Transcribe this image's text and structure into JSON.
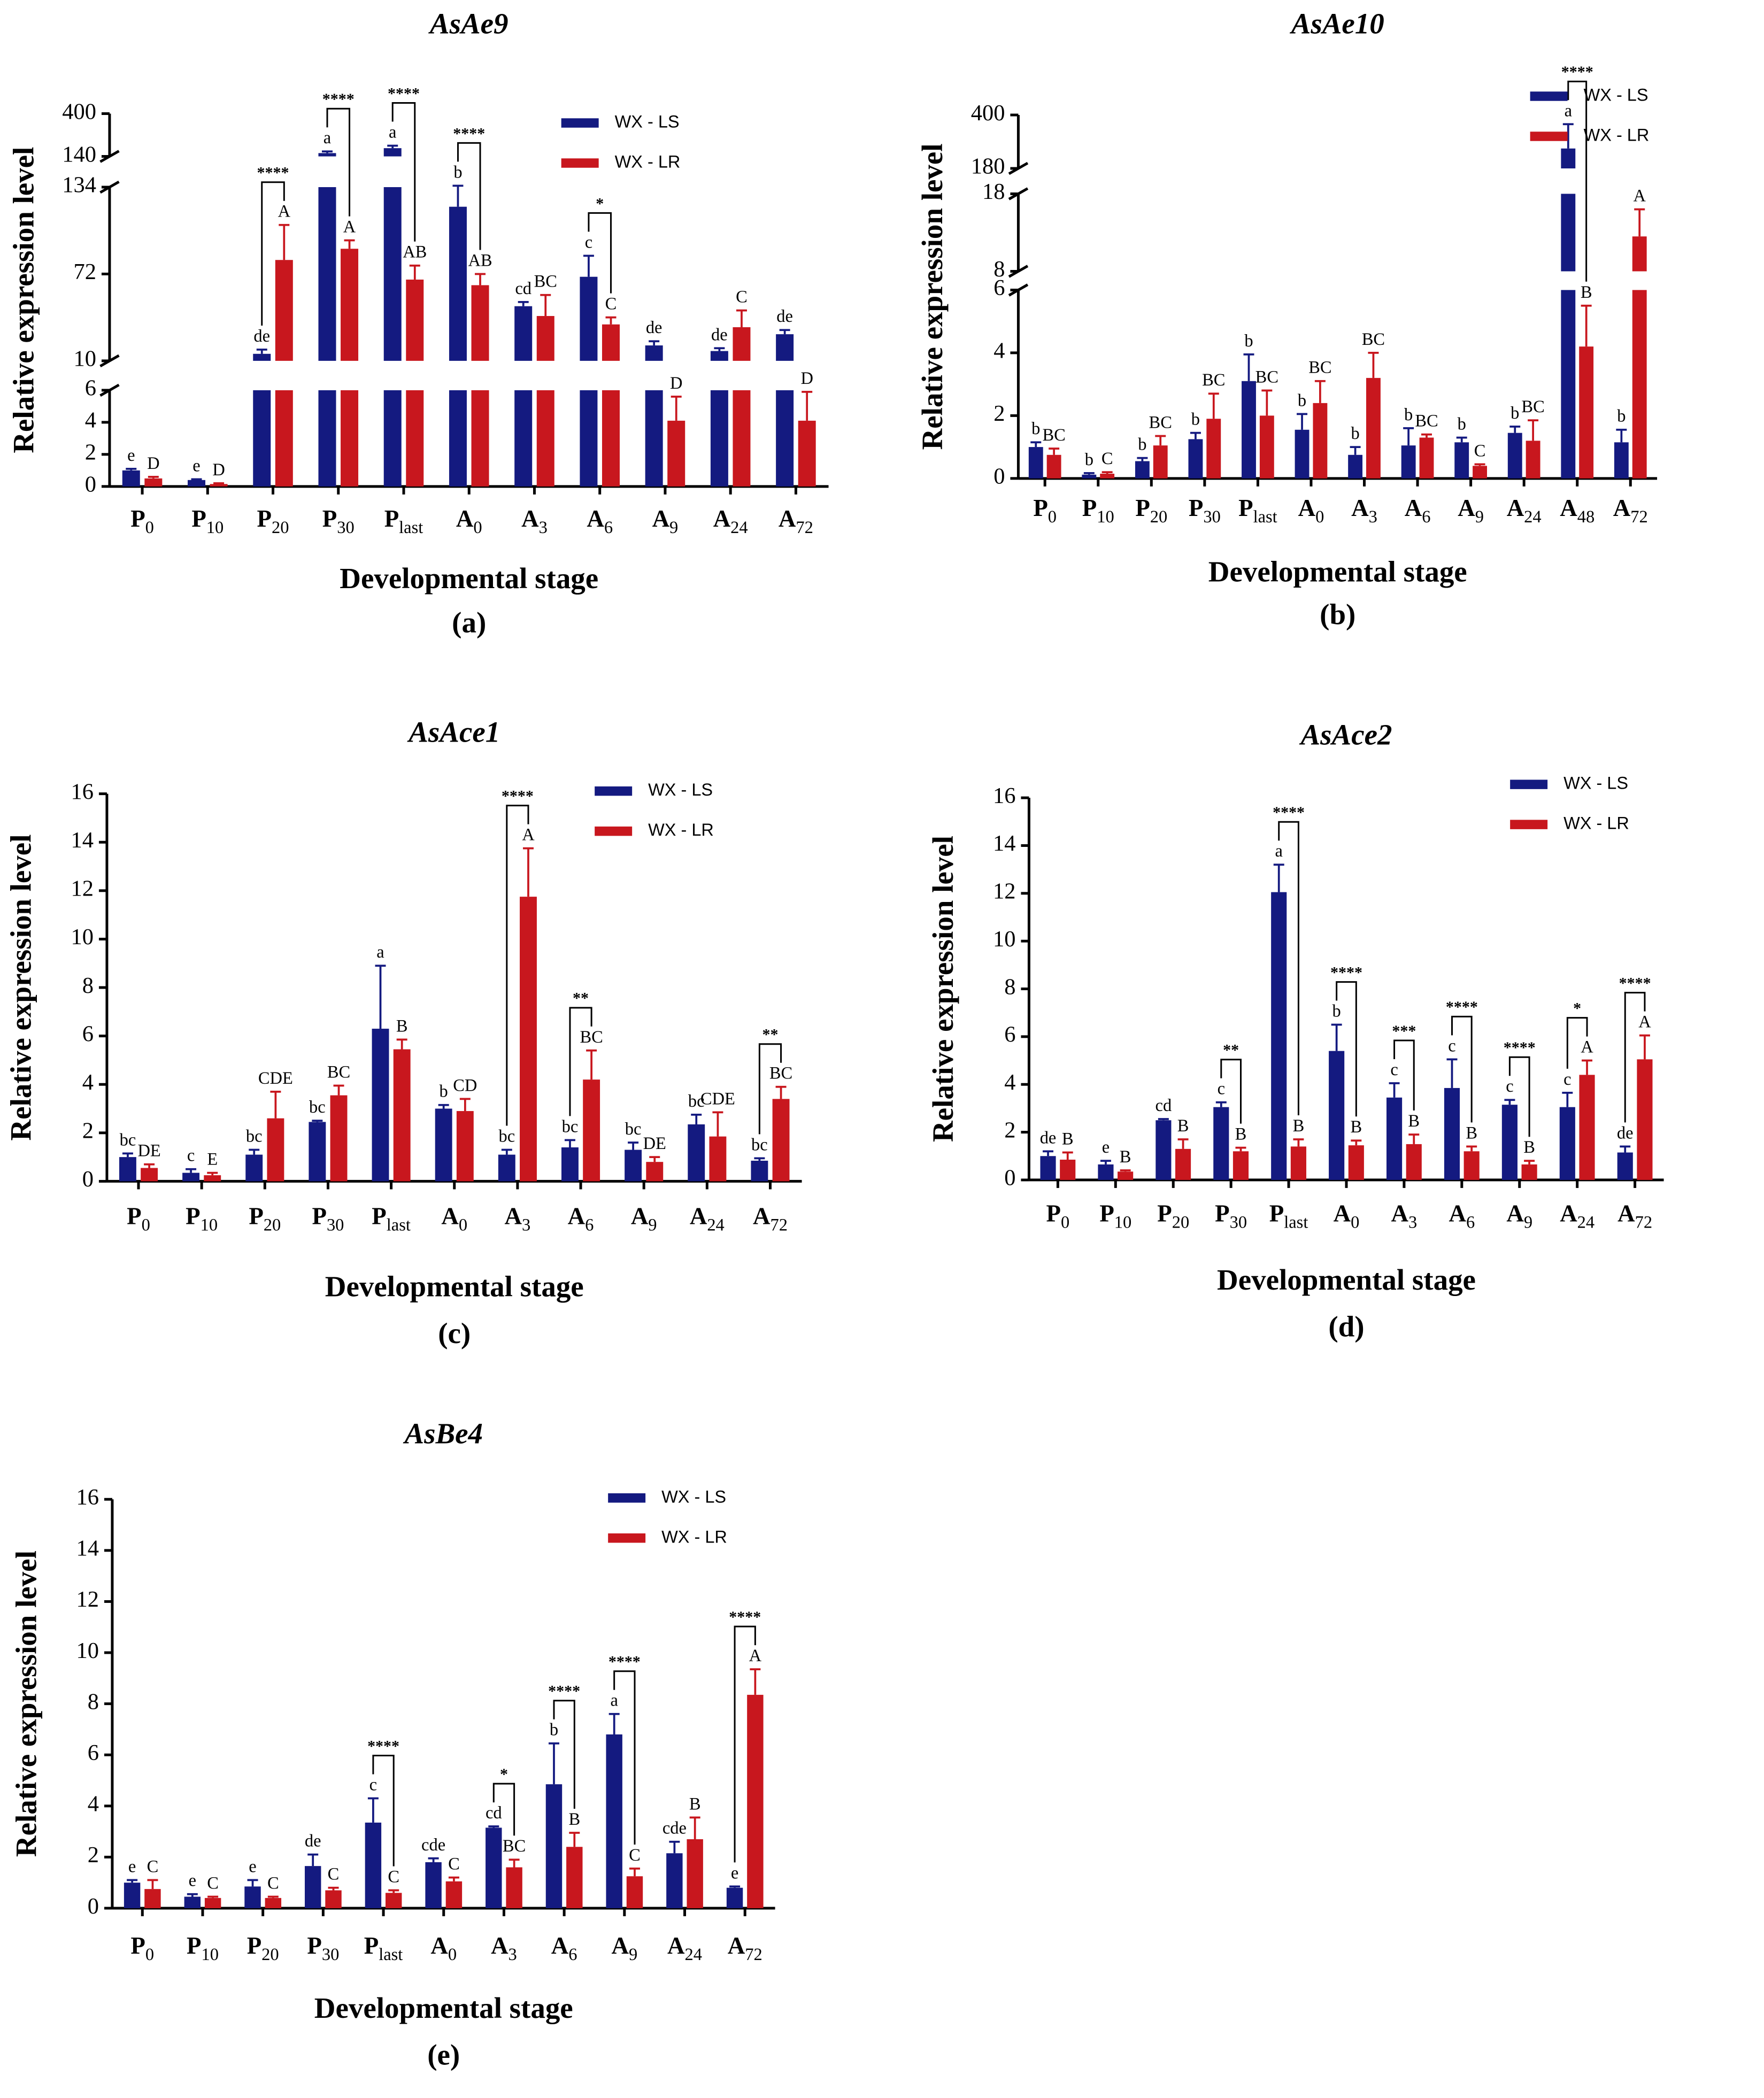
{
  "chart_data": [
    {
      "type": "bar",
      "title": "AsAe9",
      "subtitle": "(a)",
      "x_label": "Developmental stage",
      "y_label": "Relative expression level",
      "categories": [
        "P0",
        "P10",
        "P20",
        "P30",
        "Plast",
        "A0",
        "A3",
        "A6",
        "A9",
        "A24",
        "A72"
      ],
      "axis_segments": [
        {
          "ylim": [
            0,
            6
          ],
          "yticks": [
            0,
            2,
            4,
            6
          ]
        },
        {
          "ylim": [
            10,
            134
          ],
          "yticks": [
            10,
            72,
            134
          ]
        },
        {
          "ylim": [
            140,
            400
          ],
          "yticks": [
            140,
            400
          ]
        }
      ],
      "series": [
        {
          "name": "WX - LS",
          "color": "#141a80",
          "values": [
            1.0,
            0.4,
            15,
            160,
            190,
            120,
            49,
            70,
            21,
            17,
            29
          ],
          "errors": [
            0.1,
            0.05,
            3,
            10,
            15,
            15,
            3,
            15,
            3,
            2,
            3
          ],
          "letters": [
            "e",
            "e",
            "de",
            "a",
            "a",
            "b",
            "cd",
            "c",
            "de",
            "de",
            "de"
          ]
        },
        {
          "name": "WX - LR",
          "color": "#c8171e",
          "values": [
            0.5,
            0.15,
            82,
            90,
            68,
            64,
            42,
            36,
            4.1,
            34,
            4.1
          ],
          "errors": [
            0.1,
            0.05,
            25,
            6,
            10,
            8,
            15,
            5,
            1.5,
            12,
            1.8
          ],
          "letters": [
            "D",
            "D",
            "A",
            "A",
            "AB",
            "AB",
            "BC",
            "C",
            "D",
            "C",
            "D"
          ]
        }
      ],
      "significance": [
        null,
        null,
        "****",
        "****",
        "****",
        "****",
        null,
        "*",
        null,
        null,
        null
      ]
    },
    {
      "type": "bar",
      "title": "AsAe10",
      "subtitle": "(b)",
      "x_label": "Developmental stage",
      "y_label": "Relative expression level",
      "categories": [
        "P0",
        "P10",
        "P20",
        "P30",
        "Plast",
        "A0",
        "A3",
        "A6",
        "A9",
        "A24",
        "A48",
        "A72"
      ],
      "axis_segments": [
        {
          "ylim": [
            0,
            6
          ],
          "yticks": [
            0,
            2,
            4,
            6
          ]
        },
        {
          "ylim": [
            8,
            18
          ],
          "yticks": [
            8,
            18
          ]
        },
        {
          "ylim": [
            180,
            400
          ],
          "yticks": [
            180,
            400
          ]
        }
      ],
      "series": [
        {
          "name": "WX - LS",
          "color": "#141a80",
          "values": [
            1.0,
            0.12,
            0.55,
            1.25,
            3.1,
            1.55,
            0.75,
            1.05,
            1.15,
            1.45,
            262,
            1.15
          ],
          "errors": [
            0.15,
            0.05,
            0.1,
            0.2,
            0.85,
            0.5,
            0.25,
            0.55,
            0.15,
            0.2,
            100,
            0.4
          ],
          "letters": [
            "b",
            "b",
            "b",
            "b",
            "b",
            "b",
            "b",
            "b",
            "b",
            "b",
            "a",
            "b"
          ]
        },
        {
          "name": "WX - LR",
          "color": "#c8171e",
          "values": [
            0.75,
            0.15,
            1.05,
            1.9,
            2.0,
            2.4,
            3.2,
            1.3,
            0.4,
            1.2,
            4.2,
            12.5
          ],
          "errors": [
            0.2,
            0.05,
            0.3,
            0.8,
            0.8,
            0.7,
            0.8,
            0.1,
            0.05,
            0.65,
            1.3,
            3.5
          ],
          "letters": [
            "BC",
            "C",
            "BC",
            "BC",
            "BC",
            "BC",
            "BC",
            "BC",
            "C",
            "BC",
            "B",
            "A"
          ]
        }
      ],
      "significance": [
        null,
        null,
        null,
        null,
        null,
        null,
        null,
        null,
        null,
        null,
        "****",
        null
      ]
    },
    {
      "type": "bar",
      "title": "AsAce1",
      "subtitle": "(c)",
      "x_label": "Developmental stage",
      "y_label": "Relative expression level",
      "categories": [
        "P0",
        "P10",
        "P20",
        "P30",
        "Plast",
        "A0",
        "A3",
        "A6",
        "A9",
        "A24",
        "A72"
      ],
      "ylim": [
        0,
        16
      ],
      "yticks": [
        0,
        2,
        4,
        6,
        8,
        10,
        12,
        14,
        16
      ],
      "series": [
        {
          "name": "WX - LS",
          "color": "#141a80",
          "values": [
            1.0,
            0.35,
            1.1,
            2.45,
            6.3,
            3.0,
            1.1,
            1.4,
            1.3,
            2.35,
            0.85
          ],
          "errors": [
            0.15,
            0.15,
            0.2,
            0.05,
            2.6,
            0.15,
            0.2,
            0.3,
            0.3,
            0.4,
            0.1
          ],
          "letters": [
            "bc",
            "c",
            "bc",
            "bc",
            "a",
            "b",
            "bc",
            "bc",
            "bc",
            "bc",
            "bc"
          ]
        },
        {
          "name": "WX - LR",
          "color": "#c8171e",
          "values": [
            0.55,
            0.25,
            2.6,
            3.55,
            5.45,
            2.9,
            11.75,
            4.2,
            0.8,
            1.85,
            3.4
          ],
          "errors": [
            0.15,
            0.1,
            1.1,
            0.4,
            0.4,
            0.5,
            2.0,
            1.2,
            0.2,
            1.0,
            0.5
          ],
          "letters": [
            "DE",
            "E",
            "CDE",
            "BC",
            "B",
            "CD",
            "A",
            "BC",
            "DE",
            "CDE",
            "BC"
          ]
        }
      ],
      "significance": [
        null,
        null,
        null,
        null,
        null,
        null,
        "****",
        "**",
        null,
        null,
        "**"
      ]
    },
    {
      "type": "bar",
      "title": "AsAce2",
      "subtitle": "(d)",
      "x_label": "Developmental stage",
      "y_label": "Relative expression level",
      "categories": [
        "P0",
        "P10",
        "P20",
        "P30",
        "Plast",
        "A0",
        "A3",
        "A6",
        "A9",
        "A24",
        "A72"
      ],
      "ylim": [
        0,
        16
      ],
      "yticks": [
        0,
        2,
        4,
        6,
        8,
        10,
        12,
        14,
        16
      ],
      "series": [
        {
          "name": "WX - LS",
          "color": "#141a80",
          "values": [
            1.0,
            0.65,
            2.5,
            3.05,
            12.05,
            5.4,
            3.45,
            3.85,
            3.15,
            3.05,
            1.15
          ],
          "errors": [
            0.2,
            0.15,
            0.05,
            0.2,
            1.15,
            1.1,
            0.6,
            1.2,
            0.2,
            0.6,
            0.25
          ],
          "letters": [
            "de",
            "e",
            "cd",
            "c",
            "a",
            "b",
            "c",
            "c",
            "c",
            "c",
            "de"
          ]
        },
        {
          "name": "WX - LR",
          "color": "#c8171e",
          "values": [
            0.85,
            0.35,
            1.3,
            1.2,
            1.4,
            1.45,
            1.5,
            1.2,
            0.65,
            4.4,
            5.05
          ],
          "errors": [
            0.3,
            0.05,
            0.4,
            0.15,
            0.3,
            0.2,
            0.4,
            0.2,
            0.15,
            0.6,
            1.0
          ],
          "letters": [
            "B",
            "B",
            "B",
            "B",
            "B",
            "B",
            "B",
            "B",
            "B",
            "A",
            "A"
          ]
        }
      ],
      "significance": [
        null,
        null,
        null,
        "**",
        "****",
        "****",
        "***",
        "****",
        "****",
        "*",
        "****"
      ]
    },
    {
      "type": "bar",
      "title": "AsBe4",
      "subtitle": "(e)",
      "x_label": "Developmental stage",
      "y_label": "Relative expression level",
      "categories": [
        "P0",
        "P10",
        "P20",
        "P30",
        "Plast",
        "A0",
        "A3",
        "A6",
        "A9",
        "A24",
        "A72"
      ],
      "ylim": [
        0,
        16
      ],
      "yticks": [
        0,
        2,
        4,
        6,
        8,
        10,
        12,
        14,
        16
      ],
      "series": [
        {
          "name": "WX - LS",
          "color": "#141a80",
          "values": [
            1.0,
            0.45,
            0.85,
            1.65,
            3.35,
            1.8,
            3.15,
            4.85,
            6.8,
            2.15,
            0.8
          ],
          "errors": [
            0.1,
            0.1,
            0.25,
            0.45,
            0.95,
            0.15,
            0.05,
            1.6,
            0.8,
            0.45,
            0.05
          ],
          "letters": [
            "e",
            "e",
            "e",
            "de",
            "c",
            "cde",
            "cd",
            "b",
            "a",
            "cde",
            "e"
          ]
        },
        {
          "name": "WX - LR",
          "color": "#c8171e",
          "values": [
            0.75,
            0.4,
            0.4,
            0.7,
            0.6,
            1.05,
            1.6,
            2.4,
            1.25,
            2.7,
            8.35
          ],
          "errors": [
            0.35,
            0.05,
            0.05,
            0.1,
            0.1,
            0.15,
            0.3,
            0.55,
            0.3,
            0.85,
            1.0
          ],
          "letters": [
            "C",
            "C",
            "C",
            "C",
            "C",
            "C",
            "BC",
            "B",
            "C",
            "B",
            "A"
          ]
        }
      ],
      "significance": [
        null,
        null,
        null,
        null,
        "****",
        null,
        "*",
        "****",
        "****",
        null,
        "****"
      ]
    }
  ]
}
